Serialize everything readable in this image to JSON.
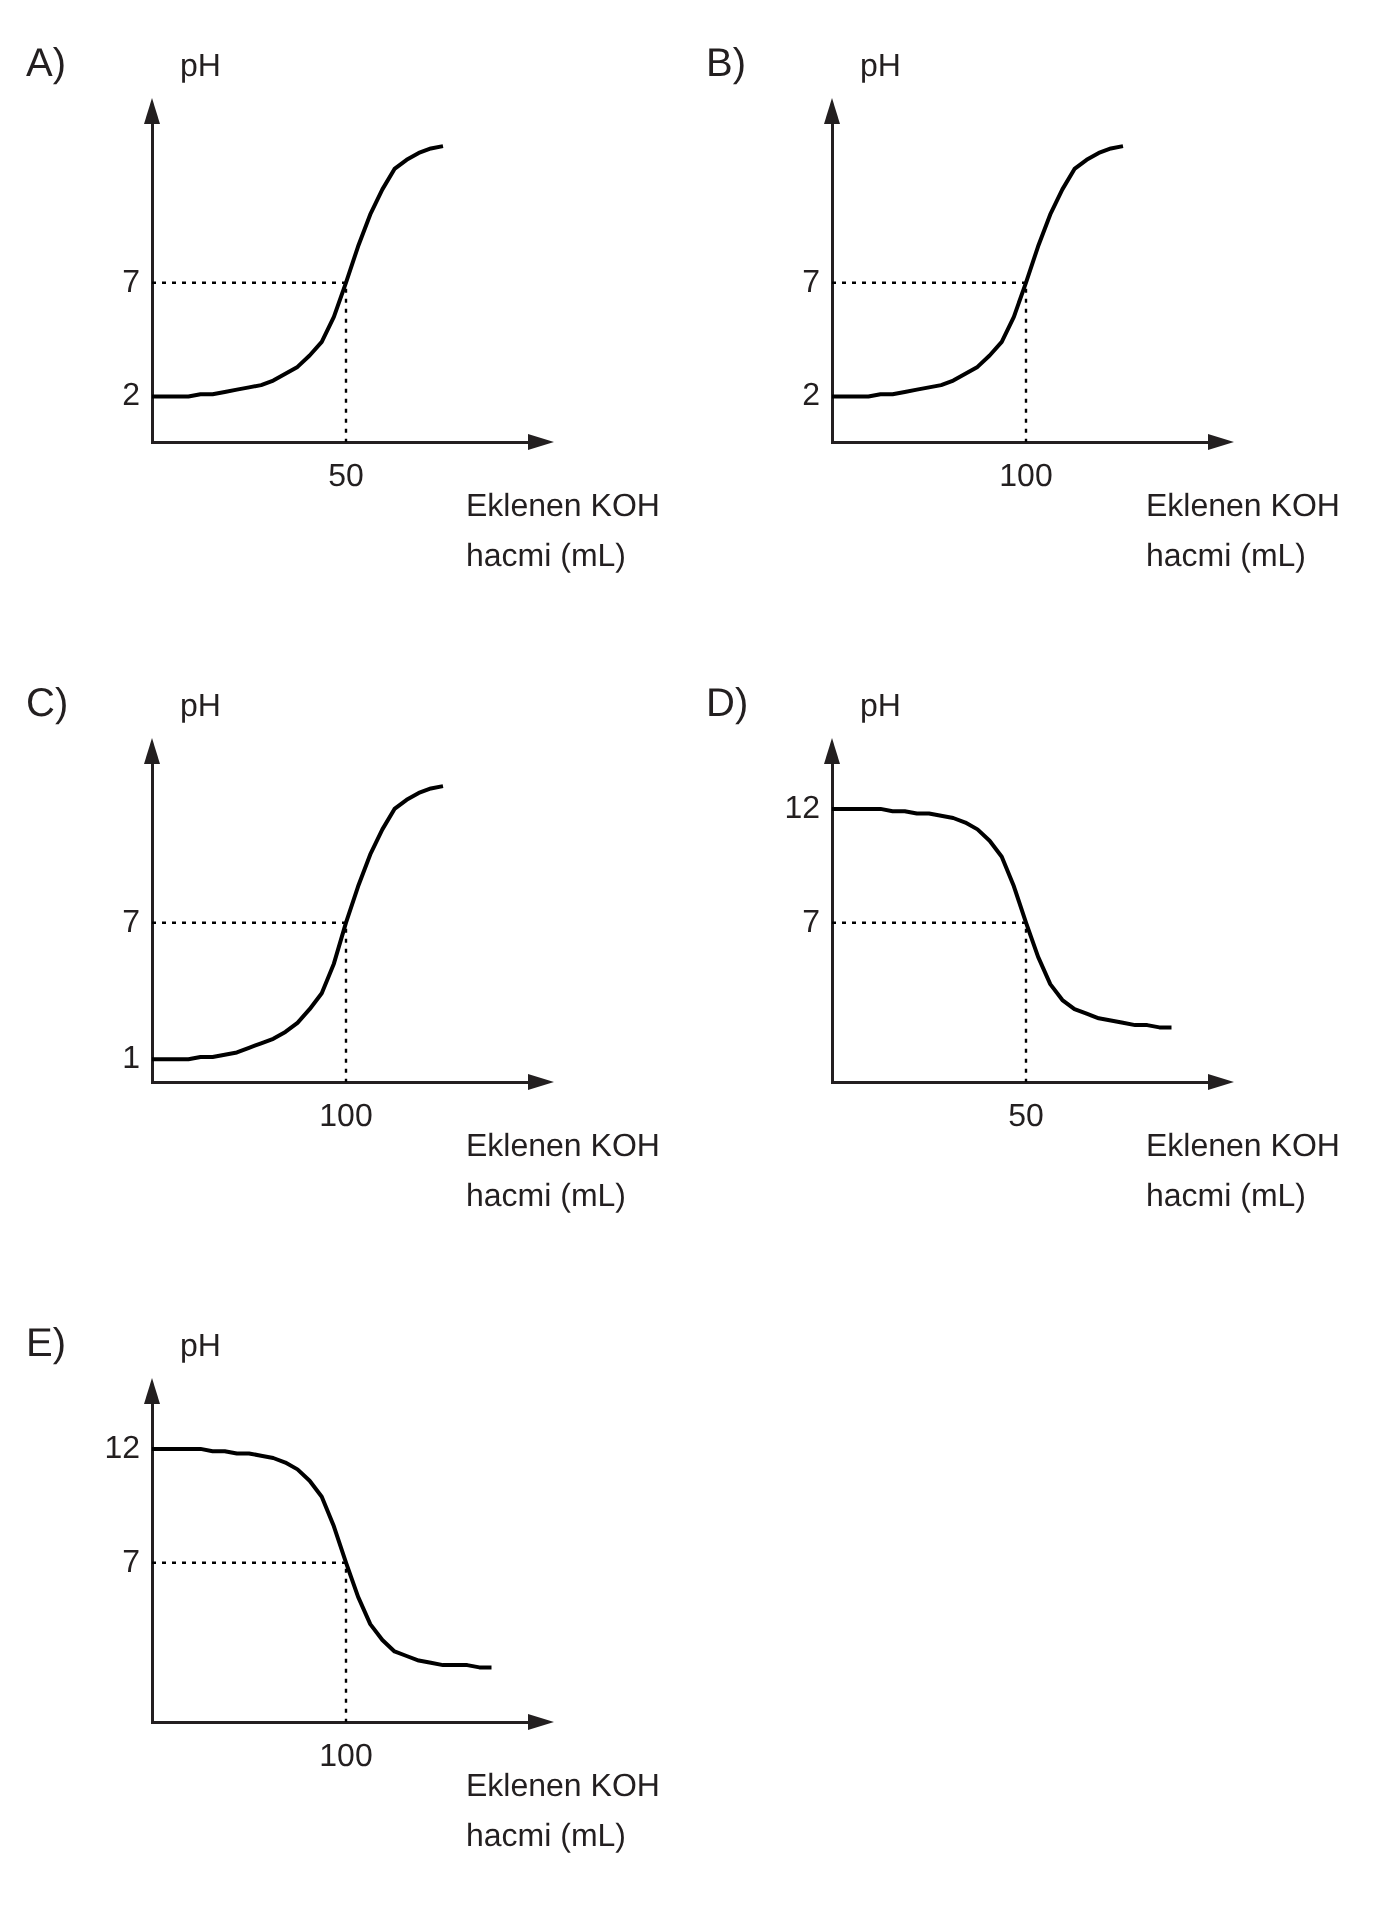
{
  "chart_data": [
    {
      "type": "line",
      "title": "A)",
      "ylabel": "pH",
      "xlabel": "Eklenen KOH hacmi (mL)",
      "annotations": [
        "50"
      ],
      "ylim": [
        0,
        14.5
      ],
      "yticks": [
        2,
        7
      ],
      "grid": false,
      "legend": false,
      "marker": "none",
      "categories": [
        null,
        null,
        null,
        null,
        null,
        null,
        null,
        null,
        null,
        null,
        null,
        null,
        null,
        null,
        null,
        null,
        null,
        null,
        null,
        null,
        null,
        null,
        null,
        null,
        null,
        null,
        null,
        null,
        null,
        null,
        null,
        null,
        null
      ],
      "ref_lines": [
        {
          "axis": "y",
          "value": 7,
          "line_style": "dotted",
          "color": "#000000"
        }
      ],
      "series": [
        {
          "color": "#000000",
          "values": [
            2,
            2,
            2,
            2,
            2.1,
            2.1,
            2.2,
            2.3,
            2.4,
            2.5,
            2.7,
            3,
            3.3,
            3.8,
            4.4,
            5.5,
            7,
            8.6,
            10,
            11.1,
            12,
            12.4,
            12.7,
            12.9,
            13,
            null,
            null,
            null,
            null,
            null,
            null,
            null,
            null
          ]
        }
      ]
    },
    {
      "type": "line",
      "title": "B)",
      "ylabel": "pH",
      "xlabel": "Eklenen KOH hacmi (mL)",
      "annotations": [
        "100"
      ],
      "ylim": [
        0,
        14.5
      ],
      "yticks": [
        2,
        7
      ],
      "grid": false,
      "legend": false,
      "marker": "none",
      "categories": [
        null,
        null,
        null,
        null,
        null,
        null,
        null,
        null,
        null,
        null,
        null,
        null,
        null,
        null,
        null,
        null,
        null,
        null,
        null,
        null,
        null,
        null,
        null,
        null,
        null,
        null,
        null,
        null,
        null,
        null,
        null,
        null,
        null
      ],
      "ref_lines": [
        {
          "axis": "y",
          "value": 7,
          "line_style": "dotted",
          "color": "#000000"
        }
      ],
      "series": [
        {
          "color": "#000000",
          "values": [
            2,
            2,
            2,
            2,
            2.1,
            2.1,
            2.2,
            2.3,
            2.4,
            2.5,
            2.7,
            3,
            3.3,
            3.8,
            4.4,
            5.5,
            7,
            8.6,
            10,
            11.1,
            12,
            12.4,
            12.7,
            12.9,
            13,
            null,
            null,
            null,
            null,
            null,
            null,
            null,
            null
          ]
        }
      ]
    },
    {
      "type": "line",
      "title": "C)",
      "ylabel": "pH",
      "xlabel": "Eklenen KOH hacmi (mL)",
      "annotations": [
        "100"
      ],
      "ylim": [
        0,
        14.5
      ],
      "yticks": [
        1,
        7
      ],
      "grid": false,
      "legend": false,
      "marker": "none",
      "categories": [
        null,
        null,
        null,
        null,
        null,
        null,
        null,
        null,
        null,
        null,
        null,
        null,
        null,
        null,
        null,
        null,
        null,
        null,
        null,
        null,
        null,
        null,
        null,
        null,
        null,
        null,
        null,
        null,
        null,
        null,
        null,
        null,
        null
      ],
      "ref_lines": [
        {
          "axis": "y",
          "value": 7,
          "line_style": "dotted",
          "color": "#000000"
        }
      ],
      "series": [
        {
          "color": "#000000",
          "values": [
            1,
            1,
            1,
            1,
            1.1,
            1.1,
            1.2,
            1.3,
            1.5,
            1.7,
            1.9,
            2.2,
            2.6,
            3.2,
            3.9,
            5.2,
            7,
            8.6,
            10,
            11.1,
            12,
            12.4,
            12.7,
            12.9,
            13,
            null,
            null,
            null,
            null,
            null,
            null,
            null,
            null
          ]
        }
      ]
    },
    {
      "type": "line",
      "title": "D)",
      "ylabel": "pH",
      "xlabel": "Eklenen KOH hacmi (mL)",
      "annotations": [
        "50"
      ],
      "ylim": [
        0,
        14.5
      ],
      "yticks": [
        7,
        12
      ],
      "grid": false,
      "legend": false,
      "marker": "none",
      "categories": [
        null,
        null,
        null,
        null,
        null,
        null,
        null,
        null,
        null,
        null,
        null,
        null,
        null,
        null,
        null,
        null,
        null,
        null,
        null,
        null,
        null,
        null,
        null,
        null,
        null,
        null,
        null,
        null,
        null,
        null,
        null,
        null,
        null
      ],
      "ref_lines": [
        {
          "axis": "y",
          "value": 7,
          "line_style": "dotted",
          "color": "#000000"
        }
      ],
      "series": [
        {
          "color": "#000000",
          "values": [
            12,
            12,
            12,
            12,
            12,
            11.9,
            11.9,
            11.8,
            11.8,
            11.7,
            11.6,
            11.4,
            11.1,
            10.6,
            9.9,
            8.6,
            7,
            5.5,
            4.3,
            3.6,
            3.2,
            3,
            2.8,
            2.7,
            2.6,
            2.5,
            2.5,
            2.4,
            2.4,
            null,
            null,
            null,
            null
          ]
        }
      ]
    },
    {
      "type": "line",
      "title": "E)",
      "ylabel": "pH",
      "xlabel": "Eklenen KOH hacmi (mL)",
      "annotations": [
        "100"
      ],
      "ylim": [
        0,
        14.5
      ],
      "yticks": [
        7,
        12
      ],
      "grid": false,
      "legend": false,
      "marker": "none",
      "categories": [
        null,
        null,
        null,
        null,
        null,
        null,
        null,
        null,
        null,
        null,
        null,
        null,
        null,
        null,
        null,
        null,
        null,
        null,
        null,
        null,
        null,
        null,
        null,
        null,
        null,
        null,
        null,
        null,
        null,
        null,
        null,
        null,
        null
      ],
      "ref_lines": [
        {
          "axis": "y",
          "value": 7,
          "line_style": "dotted",
          "color": "#000000"
        }
      ],
      "series": [
        {
          "color": "#000000",
          "values": [
            12,
            12,
            12,
            12,
            12,
            11.9,
            11.9,
            11.8,
            11.8,
            11.7,
            11.6,
            11.4,
            11.1,
            10.6,
            9.9,
            8.6,
            7,
            5.5,
            4.3,
            3.6,
            3.1,
            2.9,
            2.7,
            2.6,
            2.5,
            2.5,
            2.5,
            2.4,
            2.4,
            null,
            null,
            null,
            null
          ]
        }
      ]
    }
  ]
}
